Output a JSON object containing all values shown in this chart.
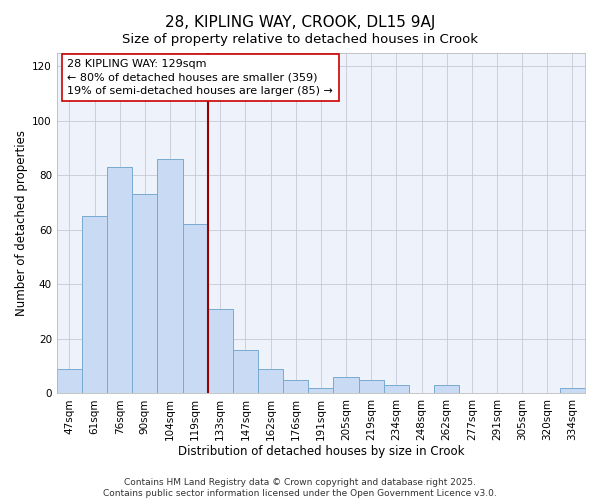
{
  "title": "28, KIPLING WAY, CROOK, DL15 9AJ",
  "subtitle": "Size of property relative to detached houses in Crook",
  "xlabel": "Distribution of detached houses by size in Crook",
  "ylabel": "Number of detached properties",
  "categories": [
    "47sqm",
    "61sqm",
    "76sqm",
    "90sqm",
    "104sqm",
    "119sqm",
    "133sqm",
    "147sqm",
    "162sqm",
    "176sqm",
    "191sqm",
    "205sqm",
    "219sqm",
    "234sqm",
    "248sqm",
    "262sqm",
    "277sqm",
    "291sqm",
    "305sqm",
    "320sqm",
    "334sqm"
  ],
  "values": [
    9,
    65,
    83,
    73,
    86,
    62,
    31,
    16,
    9,
    5,
    2,
    6,
    5,
    3,
    0,
    3,
    0,
    0,
    0,
    0,
    2
  ],
  "bar_color": "#c8daf4",
  "bar_edge_color": "#7aaad0",
  "vline_x": 5.5,
  "vline_color": "#990000",
  "annotation_title": "28 KIPLING WAY: 129sqm",
  "annotation_line1": "← 80% of detached houses are smaller (359)",
  "annotation_line2": "19% of semi-detached houses are larger (85) →",
  "ann_box_edge_color": "#cc0000",
  "ylim": [
    0,
    125
  ],
  "yticks": [
    0,
    20,
    40,
    60,
    80,
    100,
    120
  ],
  "footer1": "Contains HM Land Registry data © Crown copyright and database right 2025.",
  "footer2": "Contains public sector information licensed under the Open Government Licence v3.0.",
  "bg_color": "#ffffff",
  "plot_bg_color": "#eef2fb",
  "title_fontsize": 11,
  "subtitle_fontsize": 9.5,
  "axis_label_fontsize": 8.5,
  "tick_fontsize": 7.5,
  "annotation_fontsize": 8,
  "footer_fontsize": 6.5
}
